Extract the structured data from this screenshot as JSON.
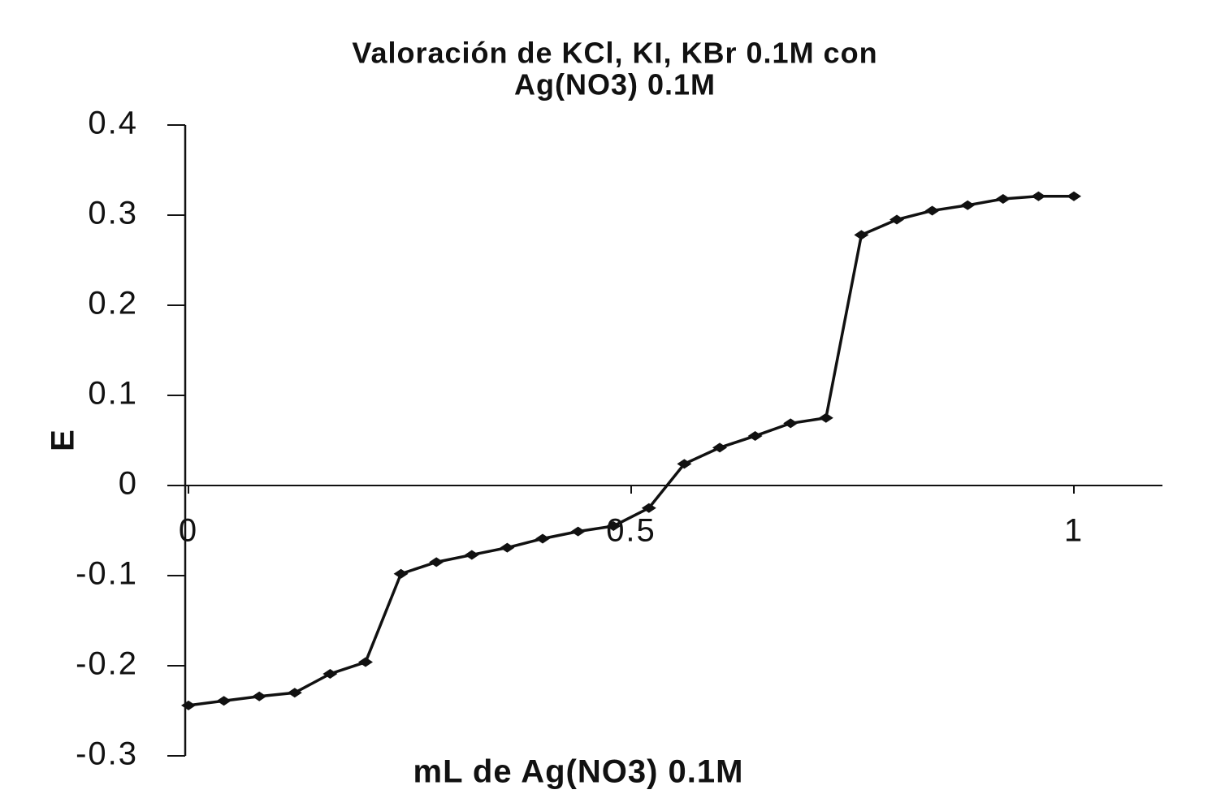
{
  "chart_data": {
    "type": "line",
    "title": [
      "Valoración de KCl, KI, KBr 0.1M con",
      "Ag(NO3) 0.1M"
    ],
    "x_label": "mL de Ag(NO3) 0.1M",
    "y_label": "E",
    "x": [
      0,
      0.04,
      0.08,
      0.12,
      0.16,
      0.2,
      0.24,
      0.28,
      0.32,
      0.36,
      0.4,
      0.44,
      0.48,
      0.52,
      0.56,
      0.6,
      0.64,
      0.68,
      0.72,
      0.76,
      0.8,
      0.84,
      0.88,
      0.92,
      0.96,
      1
    ],
    "series": [
      {
        "color": "#111111",
        "values": [
          -0.244,
          -0.239,
          -0.234,
          -0.23,
          -0.209,
          -0.196,
          -0.098,
          -0.085,
          -0.077,
          -0.069,
          -0.059,
          -0.051,
          -0.045,
          -0.025,
          0.024,
          0.042,
          0.055,
          0.069,
          0.075,
          0.278,
          0.295,
          0.305,
          0.311,
          0.318,
          0.321,
          0.321
        ]
      }
    ],
    "xlim": [
      0,
      1.1
    ],
    "ylim": [
      -0.3,
      0.4
    ],
    "xticks": [
      0,
      0.5,
      1
    ],
    "yticks": [
      0.4,
      0.3,
      0.2,
      0.1,
      0,
      -0.1,
      -0.2,
      -0.3
    ],
    "grid": false,
    "markers": true
  }
}
